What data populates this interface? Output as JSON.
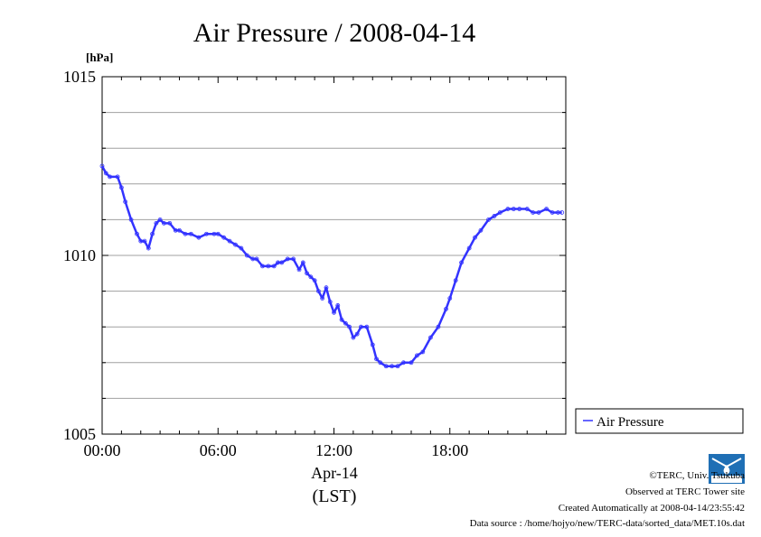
{
  "chart_data": {
    "type": "line",
    "title": "Air Pressure / 2008-04-14",
    "ylabel": "[hPa]",
    "xlabel_date": "Apr-14",
    "xlabel_tz": "(LST)",
    "xlim": [
      0,
      24
    ],
    "ylim": [
      1005,
      1015
    ],
    "x_ticks": [
      0,
      6,
      12,
      18
    ],
    "x_tick_labels": [
      "00:00",
      "06:00",
      "12:00",
      "18:00"
    ],
    "y_ticks": [
      1005,
      1010,
      1015
    ],
    "y_tick_labels": [
      "1005",
      "1010",
      "1015"
    ],
    "y_grid": [
      1006,
      1007,
      1008,
      1009,
      1010,
      1011,
      1012,
      1013,
      1014
    ],
    "grid": true,
    "legend_position": "right",
    "series": [
      {
        "name": "Air Pressure",
        "color": "#3333ff",
        "x": [
          0,
          0.2,
          0.4,
          0.8,
          1.0,
          1.2,
          1.5,
          1.8,
          2.0,
          2.2,
          2.4,
          2.6,
          2.8,
          3.0,
          3.2,
          3.5,
          3.8,
          4.0,
          4.3,
          4.6,
          5.0,
          5.4,
          5.8,
          6.0,
          6.3,
          6.6,
          6.9,
          7.2,
          7.5,
          7.8,
          8.0,
          8.3,
          8.6,
          8.9,
          9.1,
          9.3,
          9.6,
          9.9,
          10.2,
          10.4,
          10.6,
          10.8,
          11.0,
          11.2,
          11.4,
          11.6,
          11.8,
          12.0,
          12.2,
          12.4,
          12.6,
          12.8,
          13.0,
          13.2,
          13.4,
          13.7,
          14.0,
          14.2,
          14.4,
          14.7,
          15.0,
          15.3,
          15.6,
          16.0,
          16.3,
          16.6,
          17.0,
          17.4,
          17.8,
          18.0,
          18.3,
          18.6,
          19.0,
          19.3,
          19.6,
          20.0,
          20.3,
          20.6,
          21.0,
          21.3,
          21.6,
          22.0,
          22.3,
          22.6,
          23.0,
          23.3,
          23.6,
          23.8
        ],
        "values": [
          1012.5,
          1012.3,
          1012.2,
          1012.2,
          1011.9,
          1011.5,
          1011.0,
          1010.6,
          1010.4,
          1010.4,
          1010.2,
          1010.6,
          1010.9,
          1011.0,
          1010.9,
          1010.9,
          1010.7,
          1010.7,
          1010.6,
          1010.6,
          1010.5,
          1010.6,
          1010.6,
          1010.6,
          1010.5,
          1010.4,
          1010.3,
          1010.2,
          1010.0,
          1009.9,
          1009.9,
          1009.7,
          1009.7,
          1009.7,
          1009.8,
          1009.8,
          1009.9,
          1009.9,
          1009.6,
          1009.8,
          1009.5,
          1009.4,
          1009.3,
          1009.0,
          1008.8,
          1009.1,
          1008.7,
          1008.4,
          1008.6,
          1008.2,
          1008.1,
          1008.0,
          1007.7,
          1007.8,
          1008.0,
          1008.0,
          1007.5,
          1007.1,
          1007.0,
          1006.9,
          1006.9,
          1006.9,
          1007.0,
          1007.0,
          1007.2,
          1007.3,
          1007.7,
          1008.0,
          1008.5,
          1008.8,
          1009.3,
          1009.8,
          1010.2,
          1010.5,
          1010.7,
          1011.0,
          1011.1,
          1011.2,
          1011.3,
          1011.3,
          1011.3,
          1011.3,
          1011.2,
          1011.2,
          1011.3,
          1011.2,
          1011.2,
          1011.2
        ]
      }
    ]
  },
  "legend": {
    "label": "Air Pressure"
  },
  "footer": {
    "copyright": "©TERC, Univ. Tsukuba",
    "observed": "Observed at TERC Tower site",
    "created": "Created Automatically at 2008-04-14/23:55:42",
    "source": "Data source : /home/hojyo/new/TERC-data/sorted_data/MET.10s.dat",
    "logo_text": "TERC"
  },
  "colors": {
    "series": "#3333ff",
    "grid": "#a0a0a0",
    "logo": "#1f6fb5"
  }
}
